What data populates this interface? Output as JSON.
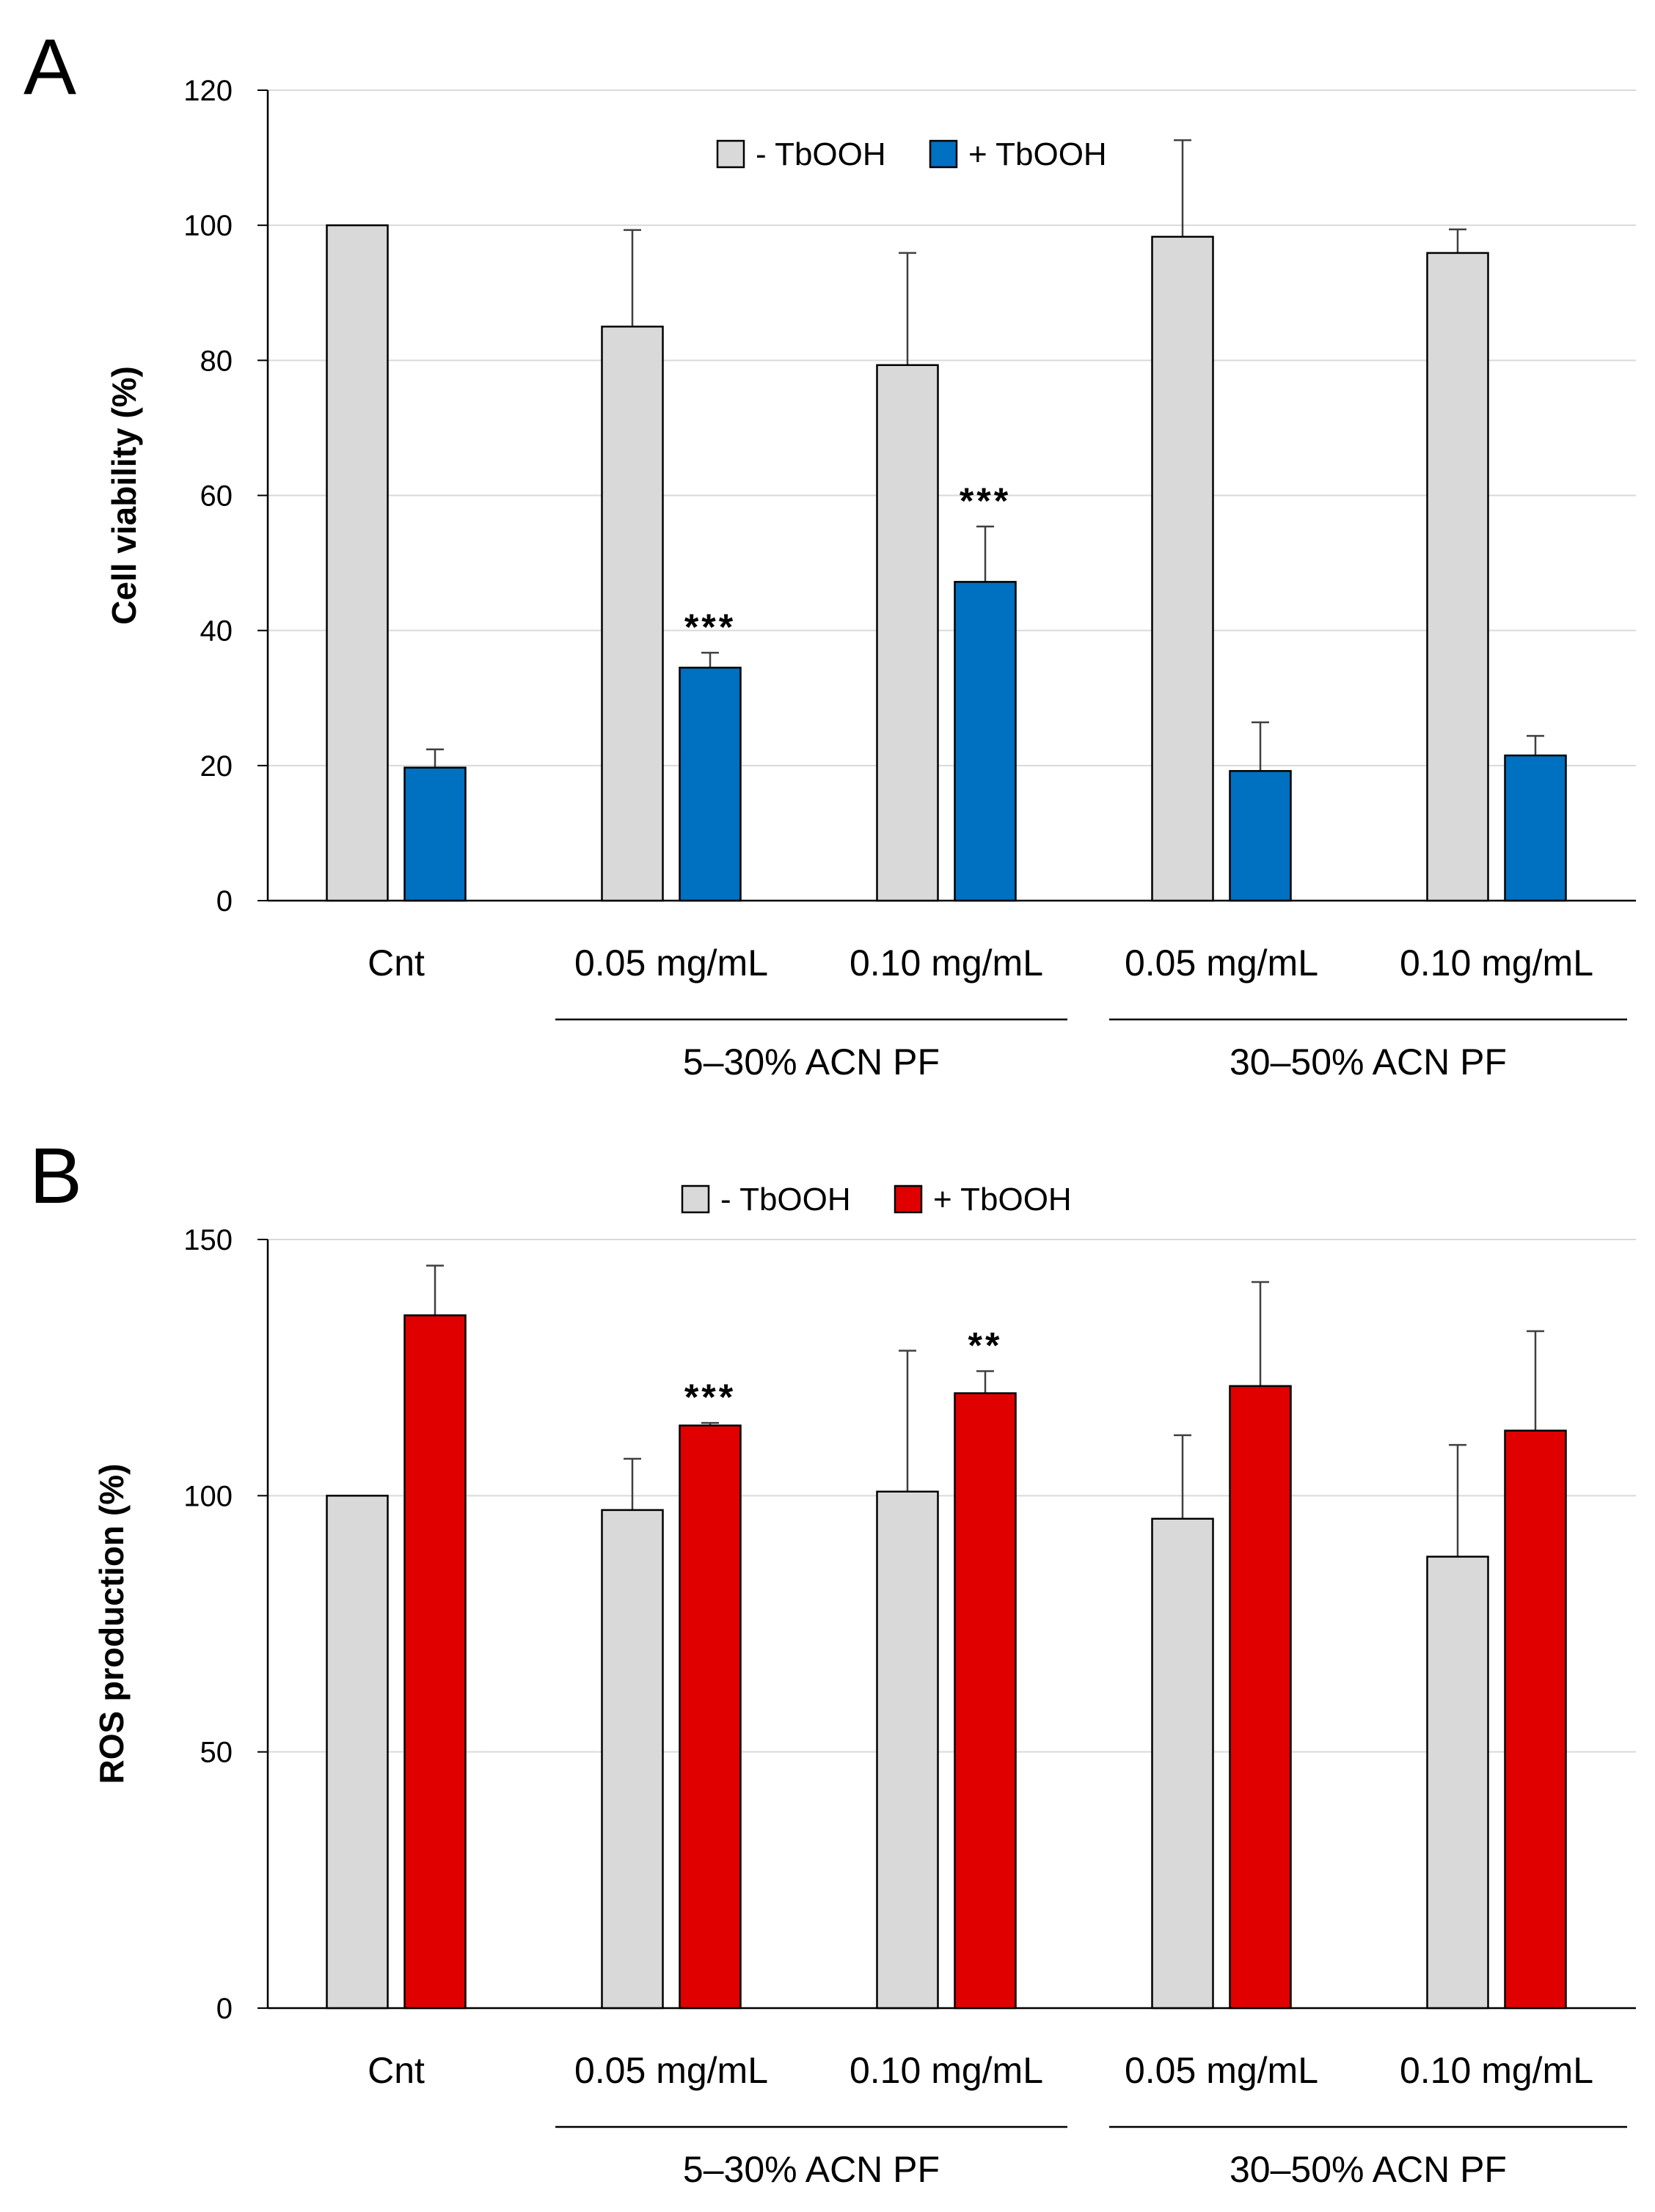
{
  "colors": {
    "minus": "#d9d9d9",
    "plus_A": "#0070c0",
    "plus_B": "#e00000",
    "grid": "#d9d9d9",
    "axis": "#000000",
    "errorbar": "#404040"
  },
  "chart_data": [
    {
      "panel": "A",
      "type": "bar",
      "ylabel": "Cell viability (%)",
      "xlabel": "",
      "ylim": [
        0,
        120
      ],
      "yticks": [
        0,
        20,
        40,
        60,
        80,
        100,
        120
      ],
      "grid": true,
      "legend_position": "top-center",
      "categories": [
        "Cnt",
        "0.05 mg/mL",
        "0.10 mg/mL",
        "0.05 mg/mL",
        "0.10 mg/mL"
      ],
      "groups": [
        {
          "label": "5–30% ACN PF",
          "categories": [
            1,
            2
          ]
        },
        {
          "label": "30–50% ACN PF",
          "categories": [
            3,
            4
          ]
        }
      ],
      "series": [
        {
          "name": "- TbOOH",
          "values": [
            100,
            85,
            79.3,
            98.3,
            95.9
          ],
          "errors": [
            0,
            14.3,
            16.6,
            14.3,
            3.5
          ],
          "sig": [
            "",
            "",
            "",
            "",
            ""
          ]
        },
        {
          "name": "+ TbOOH",
          "values": [
            19.7,
            34.5,
            47.2,
            19.2,
            21.5
          ],
          "errors": [
            2.7,
            2.2,
            8.2,
            7.2,
            2.9
          ],
          "sig": [
            "",
            "***",
            "***",
            "",
            ""
          ]
        }
      ]
    },
    {
      "panel": "B",
      "type": "bar",
      "ylabel": "ROS production (%)",
      "xlabel": "",
      "ylim": [
        0,
        150
      ],
      "yticks": [
        0,
        50,
        100,
        150
      ],
      "grid": true,
      "legend_position": "top-center",
      "categories": [
        "Cnt",
        "0.05 mg/mL",
        "0.10 mg/mL",
        "0.05 mg/mL",
        "0.10 mg/mL"
      ],
      "groups": [
        {
          "label": "5–30% ACN PF",
          "categories": [
            1,
            2
          ]
        },
        {
          "label": "30–50% ACN PF",
          "categories": [
            3,
            4
          ]
        }
      ],
      "series": [
        {
          "name": "- TbOOH",
          "values": [
            100,
            97.2,
            100.8,
            95.5,
            88.1
          ],
          "errors": [
            0,
            10,
            27.5,
            16.3,
            21.8
          ],
          "sig": [
            "",
            "",
            "",
            "",
            ""
          ]
        },
        {
          "name": "+ TbOOH",
          "values": [
            135.2,
            113.7,
            120,
            121.4,
            112.7
          ],
          "errors": [
            9.7,
            0.5,
            4.3,
            20.3,
            19.4
          ],
          "sig": [
            "",
            "***",
            "**",
            "",
            ""
          ]
        }
      ]
    }
  ]
}
